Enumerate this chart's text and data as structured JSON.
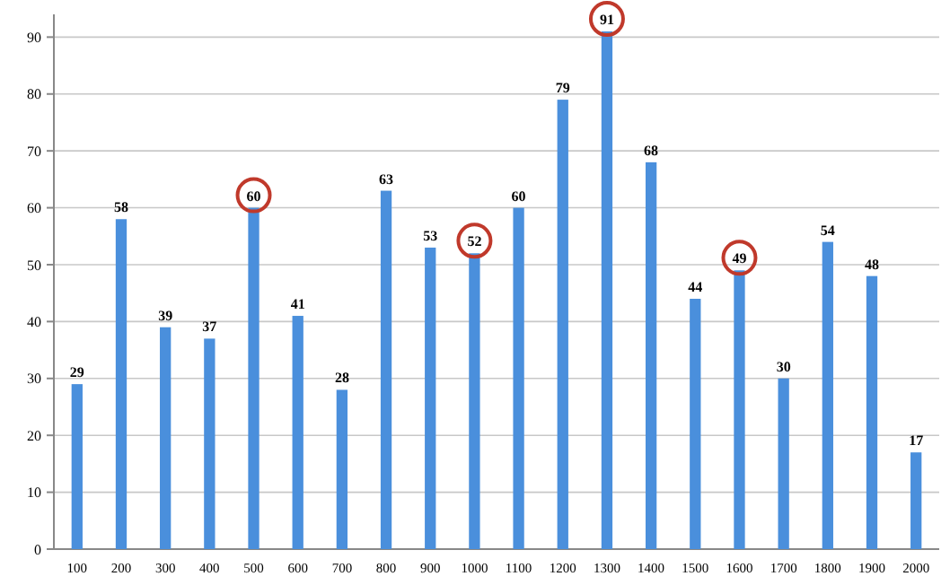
{
  "chart_data": {
    "type": "bar",
    "categories": [
      "100",
      "200",
      "300",
      "400",
      "500",
      "600",
      "700",
      "800",
      "900",
      "1000",
      "1100",
      "1200",
      "1300",
      "1400",
      "1500",
      "1600",
      "1700",
      "1800",
      "1900",
      "2000"
    ],
    "values": [
      29,
      58,
      39,
      37,
      60,
      41,
      28,
      63,
      53,
      52,
      60,
      79,
      91,
      68,
      44,
      49,
      30,
      54,
      48,
      17
    ],
    "color": "#4a8fdc",
    "ylim": [
      0,
      94
    ],
    "yticks": [
      0,
      10,
      20,
      30,
      40,
      50,
      60,
      70,
      80,
      90
    ],
    "grid": "y",
    "data_labels": true
  }
}
